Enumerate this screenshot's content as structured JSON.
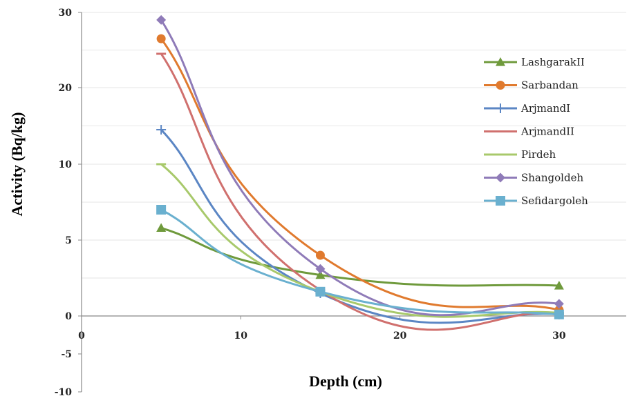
{
  "chart_data": {
    "type": "line",
    "xlabel": "Depth (cm)",
    "ylabel": "Activity (Bq/kg)",
    "x_ticks": [
      "0",
      "10",
      "20",
      "30"
    ],
    "x_tick_values": [
      0,
      10,
      20,
      30
    ],
    "y_ticks": [
      "-10",
      "-5",
      "0",
      "5",
      "10",
      "20",
      "30"
    ],
    "y_tick_values": [
      -10,
      -5,
      0,
      5,
      10,
      20,
      30
    ],
    "x": [
      5,
      15,
      30
    ],
    "xlim": [
      0,
      35
    ],
    "grid": true,
    "legend_position": "right",
    "series": [
      {
        "name": "LashgarakII",
        "values": [
          5.8,
          2.7,
          2.0
        ],
        "color": "#6f9a3c",
        "marker": "triangle"
      },
      {
        "name": "Sarbandan",
        "values": [
          26.5,
          4.0,
          0.4
        ],
        "color": "#e07a2e",
        "marker": "circle"
      },
      {
        "name": "ArjmandI",
        "values": [
          14.5,
          1.5,
          0.1
        ],
        "color": "#5b86c4",
        "marker": "plus"
      },
      {
        "name": "ArjmandII",
        "values": [
          24.5,
          1.7,
          0.2
        ],
        "color": "#d0706e",
        "marker": "dash"
      },
      {
        "name": "Pirdeh",
        "values": [
          10.0,
          1.6,
          0.2
        ],
        "color": "#a8c96b",
        "marker": "dash"
      },
      {
        "name": "Shangoldeh",
        "values": [
          29.0,
          3.1,
          0.8
        ],
        "color": "#8f7bb8",
        "marker": "diamond"
      },
      {
        "name": "Sefidargoleh",
        "values": [
          7.0,
          1.6,
          0.1
        ],
        "color": "#6ab0cf",
        "marker": "square"
      }
    ]
  }
}
